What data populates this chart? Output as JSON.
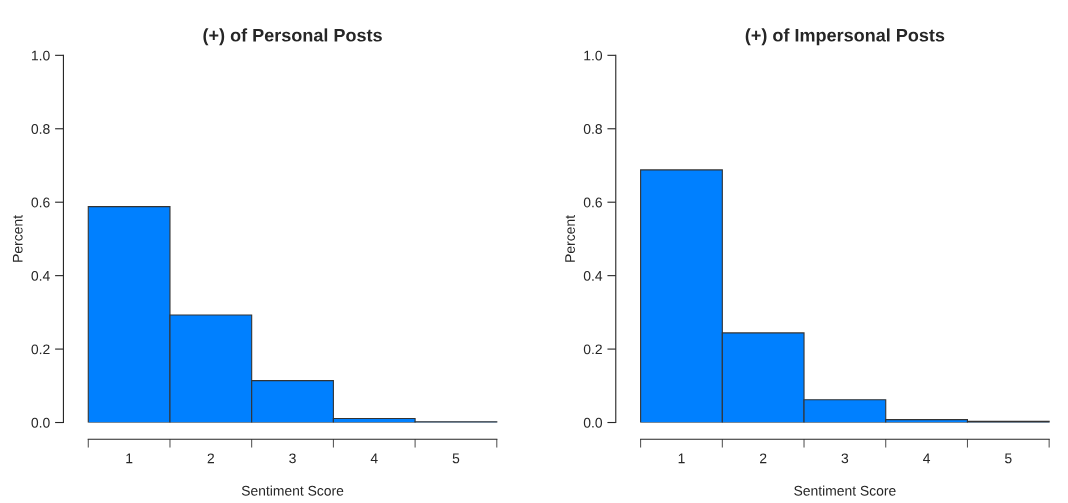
{
  "chart_data": [
    {
      "type": "bar",
      "title": "(+) of Personal Posts",
      "xlabel": "Sentiment Score",
      "ylabel": "Percent",
      "categories": [
        "1",
        "2",
        "3",
        "4",
        "5"
      ],
      "values": [
        0.588,
        0.293,
        0.114,
        0.011,
        0.002
      ],
      "color": "#0080ff",
      "ylim": [
        0,
        1
      ],
      "yticks": [
        {
          "value": 0,
          "label": "0.0"
        },
        {
          "value": 0.2,
          "label": "0.2"
        },
        {
          "value": 0.4,
          "label": "0.4"
        },
        {
          "value": 0.6,
          "label": "0.6"
        },
        {
          "value": 0.8,
          "label": "0.8"
        },
        {
          "value": 1,
          "label": "1.0"
        }
      ],
      "grid": false,
      "legend": false
    },
    {
      "type": "bar",
      "title": "(+) of Impersonal Posts",
      "xlabel": "Sentiment Score",
      "ylabel": "Percent",
      "categories": [
        "1",
        "2",
        "3",
        "4",
        "5"
      ],
      "values": [
        0.688,
        0.244,
        0.062,
        0.008,
        0.003
      ],
      "color": "#0080ff",
      "ylim": [
        0,
        1
      ],
      "yticks": [
        {
          "value": 0,
          "label": "0.0"
        },
        {
          "value": 0.2,
          "label": "0.2"
        },
        {
          "value": 0.4,
          "label": "0.4"
        },
        {
          "value": 0.6,
          "label": "0.6"
        },
        {
          "value": 0.8,
          "label": "0.8"
        },
        {
          "value": 1,
          "label": "1.0"
        }
      ],
      "grid": false,
      "legend": false
    }
  ]
}
